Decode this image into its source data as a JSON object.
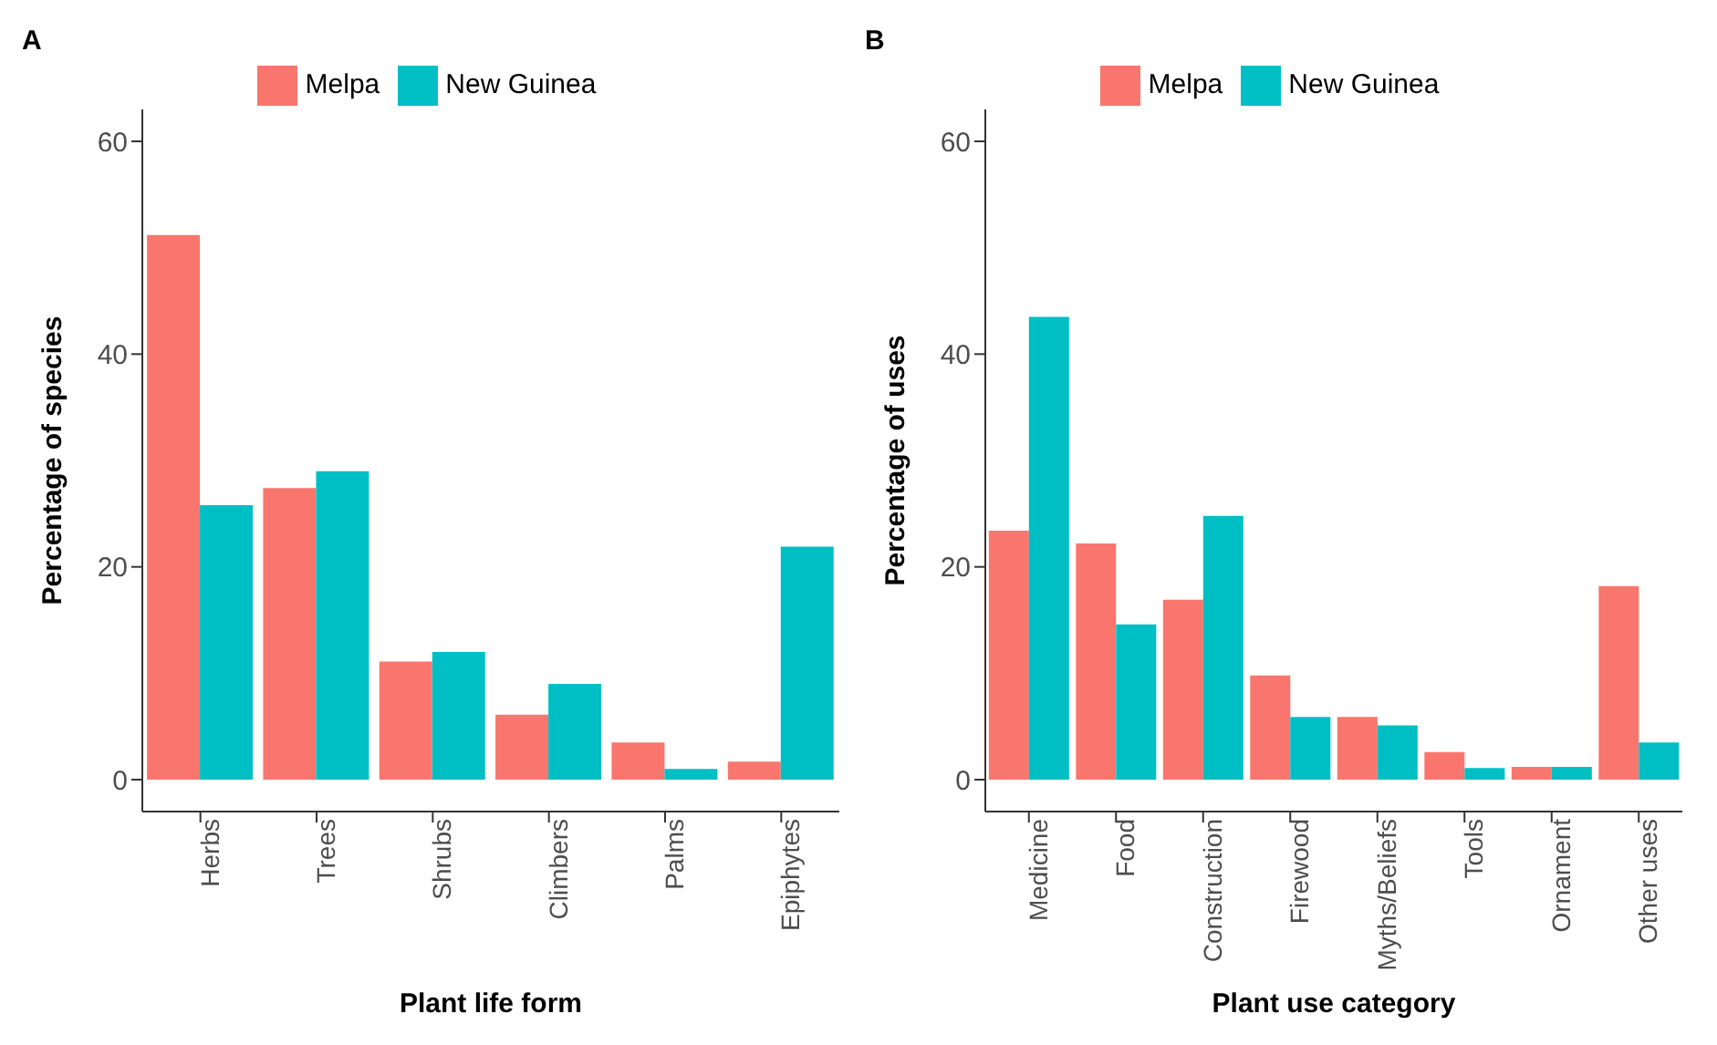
{
  "chart_data": [
    {
      "type": "bar",
      "annotations": [
        "A"
      ],
      "xlabel": "Plant life form",
      "ylabel": "Percentage of species",
      "categories": [
        "Herbs",
        "Trees",
        "Shrubs",
        "Climbers",
        "Palms",
        "Epiphytes"
      ],
      "series": [
        {
          "name": "Melpa",
          "color": "#f8766d",
          "values": [
            51.2,
            27.4,
            11.1,
            6.1,
            3.5,
            1.7
          ]
        },
        {
          "name": "New Guinea",
          "color": "#00bfc4",
          "values": [
            25.8,
            29.0,
            12.0,
            9.0,
            1.0,
            21.9
          ]
        }
      ],
      "ylim": [
        -3,
        63
      ],
      "yticks": [
        0,
        20,
        40,
        60
      ],
      "grid": false,
      "legend": "top"
    },
    {
      "type": "bar",
      "annotations": [
        "B"
      ],
      "xlabel": "Plant use category",
      "ylabel": "Percentage of uses",
      "categories": [
        "Medicine",
        "Food",
        "Construction",
        "Firewood",
        "Myths/Beliefs",
        "Tools",
        "Ornament",
        "Other uses"
      ],
      "series": [
        {
          "name": "Melpa",
          "color": "#f8766d",
          "values": [
            23.4,
            22.2,
            16.9,
            9.8,
            5.9,
            2.6,
            1.2,
            18.2
          ]
        },
        {
          "name": "New Guinea",
          "color": "#00bfc4",
          "values": [
            43.5,
            14.6,
            24.8,
            5.9,
            5.1,
            1.1,
            1.2,
            3.5
          ]
        }
      ],
      "ylim": [
        -3,
        63
      ],
      "yticks": [
        0,
        20,
        40,
        60
      ],
      "grid": false,
      "legend": "top"
    }
  ]
}
